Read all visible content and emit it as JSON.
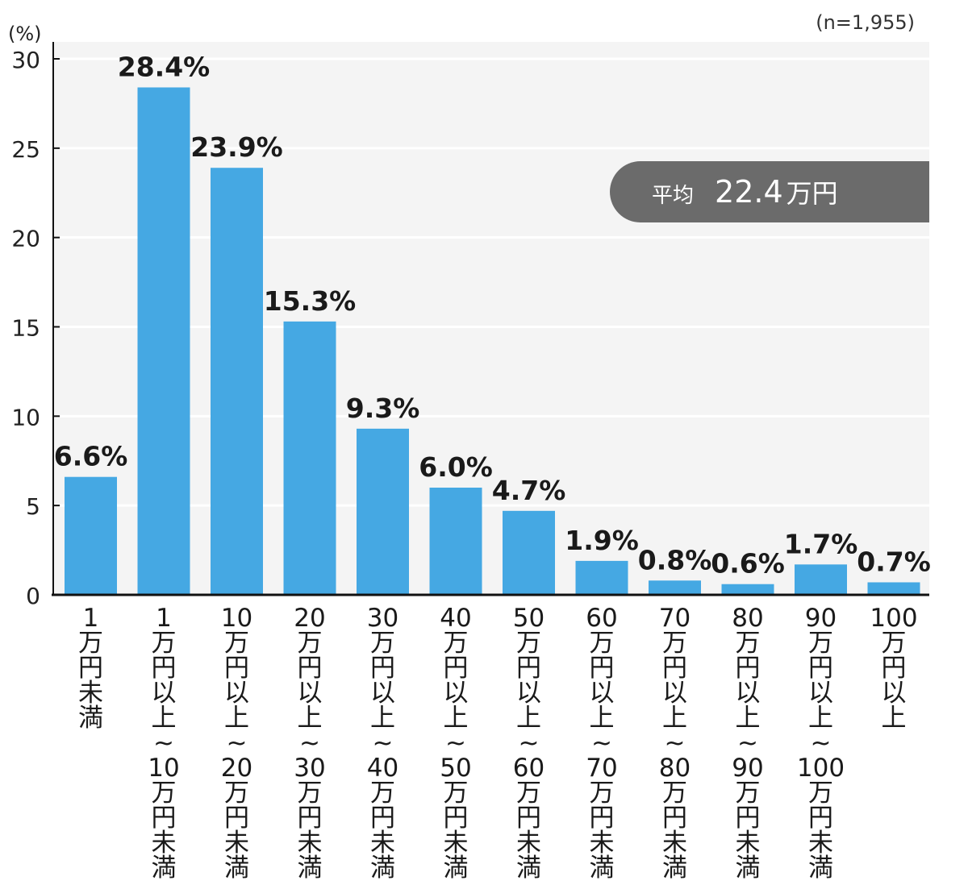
{
  "chart_data": {
    "type": "bar",
    "unit_label": "(%)",
    "sample_note": "(n=1,955)",
    "categories": [
      {
        "lines": [
          "1",
          "万",
          "円",
          "未",
          "満"
        ]
      },
      {
        "lines": [
          "1",
          "万",
          "円",
          "以",
          "上",
          "~",
          "10",
          "万",
          "円",
          "未",
          "満"
        ]
      },
      {
        "lines": [
          "10",
          "万",
          "円",
          "以",
          "上",
          "~",
          "20",
          "万",
          "円",
          "未",
          "満"
        ]
      },
      {
        "lines": [
          "20",
          "万",
          "円",
          "以",
          "上",
          "~",
          "30",
          "万",
          "円",
          "未",
          "満"
        ]
      },
      {
        "lines": [
          "30",
          "万",
          "円",
          "以",
          "上",
          "~",
          "40",
          "万",
          "円",
          "未",
          "満"
        ]
      },
      {
        "lines": [
          "40",
          "万",
          "円",
          "以",
          "上",
          "~",
          "50",
          "万",
          "円",
          "未",
          "満"
        ]
      },
      {
        "lines": [
          "50",
          "万",
          "円",
          "以",
          "上",
          "~",
          "60",
          "万",
          "円",
          "未",
          "満"
        ]
      },
      {
        "lines": [
          "60",
          "万",
          "円",
          "以",
          "上",
          "~",
          "70",
          "万",
          "円",
          "未",
          "満"
        ]
      },
      {
        "lines": [
          "70",
          "万",
          "円",
          "以",
          "上",
          "~",
          "80",
          "万",
          "円",
          "未",
          "満"
        ]
      },
      {
        "lines": [
          "80",
          "万",
          "円",
          "以",
          "上",
          "~",
          "90",
          "万",
          "円",
          "未",
          "満"
        ]
      },
      {
        "lines": [
          "90",
          "万",
          "円",
          "以",
          "上",
          "~",
          "100",
          "万",
          "円",
          "未",
          "満"
        ]
      },
      {
        "lines": [
          "100",
          "万",
          "円",
          "以",
          "上"
        ]
      }
    ],
    "values": [
      6.6,
      28.4,
      23.9,
      15.3,
      9.3,
      6.0,
      4.7,
      1.9,
      0.8,
      0.6,
      1.7,
      0.7
    ],
    "value_labels": [
      "6.6%",
      "28.4%",
      "23.9%",
      "15.3%",
      "9.3%",
      "6.0%",
      "4.7%",
      "1.9%",
      "0.8%",
      "0.6%",
      "1.7%",
      "0.7%"
    ],
    "ylim": [
      0,
      30
    ],
    "yticks": [
      0,
      5,
      10,
      15,
      20,
      25,
      30
    ],
    "grid": true,
    "average_label": "平均",
    "average_value": "22.4",
    "average_unit": "万円",
    "colors": {
      "bar": "#45a8e3",
      "plot_background": "#f4f4f4",
      "gridline": "#ffffff",
      "axis": "#111111",
      "average_badge": "#6b6b6b"
    }
  }
}
